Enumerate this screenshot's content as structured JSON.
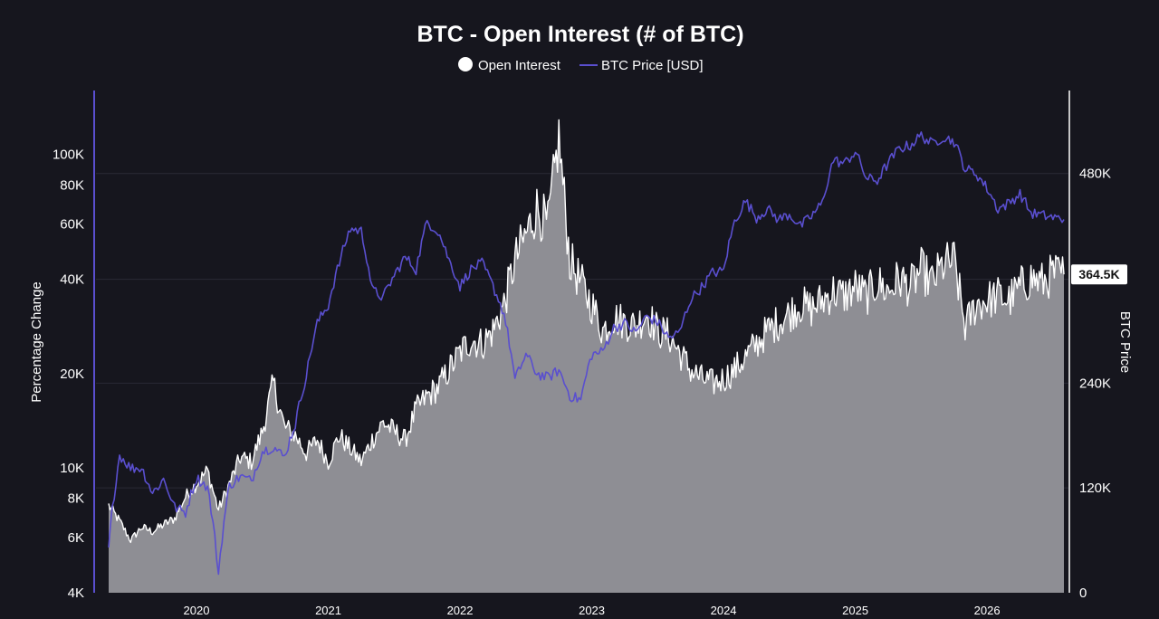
{
  "chart_data": {
    "type": "area",
    "title": "BTC - Open Interest (# of BTC)",
    "legend": {
      "placement": "top-center",
      "items": [
        {
          "label": "Open Interest",
          "color": "#ffffff",
          "marker": "circle"
        },
        {
          "label": "BTC Price [USD]",
          "color": "#5a4fcf",
          "marker": "line"
        }
      ]
    },
    "x_axis": {
      "ticks": [
        "2020",
        "2021",
        "2022",
        "2023",
        "2024",
        "2025",
        "2026"
      ],
      "range": [
        "2019-05",
        "2026-08"
      ]
    },
    "y_left": {
      "label": "Percentage Change",
      "scale": "log",
      "range": [
        4000,
        160000
      ],
      "ticks": [
        {
          "value": 4000,
          "label": "4K"
        },
        {
          "value": 6000,
          "label": "6K"
        },
        {
          "value": 8000,
          "label": "8K"
        },
        {
          "value": 10000,
          "label": "10K"
        },
        {
          "value": 20000,
          "label": "20K"
        },
        {
          "value": 40000,
          "label": "40K"
        },
        {
          "value": 60000,
          "label": "60K"
        },
        {
          "value": 80000,
          "label": "80K"
        },
        {
          "value": 100000,
          "label": "100K"
        }
      ]
    },
    "y_right": {
      "label": "BTC Price",
      "scale": "linear",
      "range": [
        0,
        575000
      ],
      "ticks": [
        {
          "value": 0,
          "label": "0"
        },
        {
          "value": 120000,
          "label": "120K"
        },
        {
          "value": 240000,
          "label": "240K"
        },
        {
          "value": 480000,
          "label": "480K"
        }
      ],
      "current_value_label": "364.5K",
      "current_value": 364500
    },
    "grid": true,
    "series": [
      {
        "name": "Open Interest",
        "axis": "right",
        "style": "area",
        "color": "#ffffff",
        "fill": "#8e8e94",
        "points": [
          [
            "2019-05",
            100000
          ],
          [
            "2019-06",
            82000
          ],
          [
            "2019-07",
            60000
          ],
          [
            "2019-08",
            75000
          ],
          [
            "2019-09",
            70000
          ],
          [
            "2019-10",
            78000
          ],
          [
            "2019-11",
            85000
          ],
          [
            "2019-12",
            110000
          ],
          [
            "2020-01",
            125000
          ],
          [
            "2020-02",
            140000
          ],
          [
            "2020-03",
            95000
          ],
          [
            "2020-04",
            125000
          ],
          [
            "2020-05",
            155000
          ],
          [
            "2020-06",
            150000
          ],
          [
            "2020-07",
            185000
          ],
          [
            "2020-08",
            240000
          ],
          [
            "2020-09",
            190000
          ],
          [
            "2020-10",
            180000
          ],
          [
            "2020-11",
            160000
          ],
          [
            "2020-12",
            175000
          ],
          [
            "2021-01",
            150000
          ],
          [
            "2021-02",
            180000
          ],
          [
            "2021-03",
            165000
          ],
          [
            "2021-04",
            150000
          ],
          [
            "2021-05",
            175000
          ],
          [
            "2021-06",
            195000
          ],
          [
            "2021-07",
            185000
          ],
          [
            "2021-08",
            175000
          ],
          [
            "2021-09",
            210000
          ],
          [
            "2021-10",
            225000
          ],
          [
            "2021-11",
            235000
          ],
          [
            "2021-12",
            255000
          ],
          [
            "2022-01",
            275000
          ],
          [
            "2022-02",
            290000
          ],
          [
            "2022-03",
            285000
          ],
          [
            "2022-04",
            300000
          ],
          [
            "2022-05",
            330000
          ],
          [
            "2022-06",
            380000
          ],
          [
            "2022-07",
            410000
          ],
          [
            "2022-08",
            440000
          ],
          [
            "2022-09",
            420000
          ],
          [
            "2022-10",
            520000
          ],
          [
            "2022-11",
            380000
          ],
          [
            "2022-12",
            355000
          ],
          [
            "2023-01",
            330000
          ],
          [
            "2023-02",
            300000
          ],
          [
            "2023-03",
            315000
          ],
          [
            "2023-04",
            310000
          ],
          [
            "2023-05",
            305000
          ],
          [
            "2023-06",
            320000
          ],
          [
            "2023-07",
            300000
          ],
          [
            "2023-08",
            295000
          ],
          [
            "2023-09",
            275000
          ],
          [
            "2023-10",
            255000
          ],
          [
            "2023-11",
            245000
          ],
          [
            "2023-12",
            240000
          ],
          [
            "2024-01",
            245000
          ],
          [
            "2024-02",
            255000
          ],
          [
            "2024-03",
            270000
          ],
          [
            "2024-04",
            285000
          ],
          [
            "2024-05",
            300000
          ],
          [
            "2024-06",
            310000
          ],
          [
            "2024-07",
            320000
          ],
          [
            "2024-08",
            330000
          ],
          [
            "2024-09",
            325000
          ],
          [
            "2024-10",
            335000
          ],
          [
            "2024-11",
            345000
          ],
          [
            "2024-12",
            340000
          ],
          [
            "2025-01",
            350000
          ],
          [
            "2025-02",
            340000
          ],
          [
            "2025-03",
            355000
          ],
          [
            "2025-04",
            345000
          ],
          [
            "2025-05",
            360000
          ],
          [
            "2025-06",
            350000
          ],
          [
            "2025-07",
            370000
          ],
          [
            "2025-08",
            355000
          ],
          [
            "2025-09",
            375000
          ],
          [
            "2025-10",
            380000
          ],
          [
            "2025-11",
            305000
          ],
          [
            "2025-12",
            330000
          ],
          [
            "2026-01",
            335000
          ],
          [
            "2026-02",
            340000
          ],
          [
            "2026-03",
            335000
          ],
          [
            "2026-04",
            350000
          ],
          [
            "2026-05",
            360000
          ],
          [
            "2026-06",
            355000
          ],
          [
            "2026-07",
            365000
          ],
          [
            "2026-08",
            364500
          ]
        ]
      },
      {
        "name": "BTC Price [USD]",
        "axis": "left",
        "style": "line",
        "color": "#5a4fcf",
        "points": [
          [
            "2019-05",
            5500
          ],
          [
            "2019-06",
            11000
          ],
          [
            "2019-07",
            10000
          ],
          [
            "2019-08",
            10000
          ],
          [
            "2019-09",
            8300
          ],
          [
            "2019-10",
            9200
          ],
          [
            "2019-11",
            7500
          ],
          [
            "2019-12",
            7200
          ],
          [
            "2020-01",
            9300
          ],
          [
            "2020-02",
            8700
          ],
          [
            "2020-03",
            4600
          ],
          [
            "2020-04",
            8800
          ],
          [
            "2020-05",
            9400
          ],
          [
            "2020-06",
            9100
          ],
          [
            "2020-07",
            11300
          ],
          [
            "2020-08",
            11700
          ],
          [
            "2020-09",
            10800
          ],
          [
            "2020-10",
            13800
          ],
          [
            "2020-11",
            19700
          ],
          [
            "2020-12",
            29000
          ],
          [
            "2021-01",
            33000
          ],
          [
            "2021-02",
            45000
          ],
          [
            "2021-03",
            58000
          ],
          [
            "2021-04",
            57000
          ],
          [
            "2021-05",
            37000
          ],
          [
            "2021-06",
            35000
          ],
          [
            "2021-07",
            41000
          ],
          [
            "2021-08",
            47000
          ],
          [
            "2021-09",
            43000
          ],
          [
            "2021-10",
            61000
          ],
          [
            "2021-11",
            57000
          ],
          [
            "2021-12",
            46000
          ],
          [
            "2022-01",
            38000
          ],
          [
            "2022-02",
            43000
          ],
          [
            "2022-03",
            45000
          ],
          [
            "2022-04",
            38000
          ],
          [
            "2022-05",
            31000
          ],
          [
            "2022-06",
            19000
          ],
          [
            "2022-07",
            23000
          ],
          [
            "2022-08",
            20000
          ],
          [
            "2022-09",
            19400
          ],
          [
            "2022-10",
            20500
          ],
          [
            "2022-11",
            17000
          ],
          [
            "2022-12",
            16500
          ],
          [
            "2023-01",
            23000
          ],
          [
            "2023-02",
            23500
          ],
          [
            "2023-03",
            28000
          ],
          [
            "2023-04",
            29000
          ],
          [
            "2023-05",
            27000
          ],
          [
            "2023-06",
            30500
          ],
          [
            "2023-07",
            29200
          ],
          [
            "2023-08",
            26000
          ],
          [
            "2023-09",
            27000
          ],
          [
            "2023-10",
            34500
          ],
          [
            "2023-11",
            37700
          ],
          [
            "2023-12",
            42000
          ],
          [
            "2024-01",
            42500
          ],
          [
            "2024-02",
            61000
          ],
          [
            "2024-03",
            71000
          ],
          [
            "2024-04",
            63000
          ],
          [
            "2024-05",
            67000
          ],
          [
            "2024-06",
            62000
          ],
          [
            "2024-07",
            64500
          ],
          [
            "2024-08",
            59000
          ],
          [
            "2024-09",
            63500
          ],
          [
            "2024-10",
            70000
          ],
          [
            "2024-11",
            96000
          ],
          [
            "2024-12",
            93500
          ],
          [
            "2025-01",
            102000
          ],
          [
            "2025-02",
            84000
          ],
          [
            "2025-03",
            82500
          ],
          [
            "2025-04",
            94000
          ],
          [
            "2025-05",
            104500
          ],
          [
            "2025-06",
            107000
          ],
          [
            "2025-07",
            115000
          ],
          [
            "2025-08",
            108000
          ],
          [
            "2025-09",
            114000
          ],
          [
            "2025-10",
            110000
          ],
          [
            "2025-11",
            90000
          ],
          [
            "2025-12",
            87000
          ],
          [
            "2026-01",
            78000
          ],
          [
            "2026-02",
            67000
          ],
          [
            "2026-03",
            70000
          ],
          [
            "2026-04",
            75000
          ],
          [
            "2026-05",
            65000
          ],
          [
            "2026-06",
            64000
          ],
          [
            "2026-07",
            63000
          ],
          [
            "2026-08",
            62000
          ]
        ]
      }
    ]
  }
}
